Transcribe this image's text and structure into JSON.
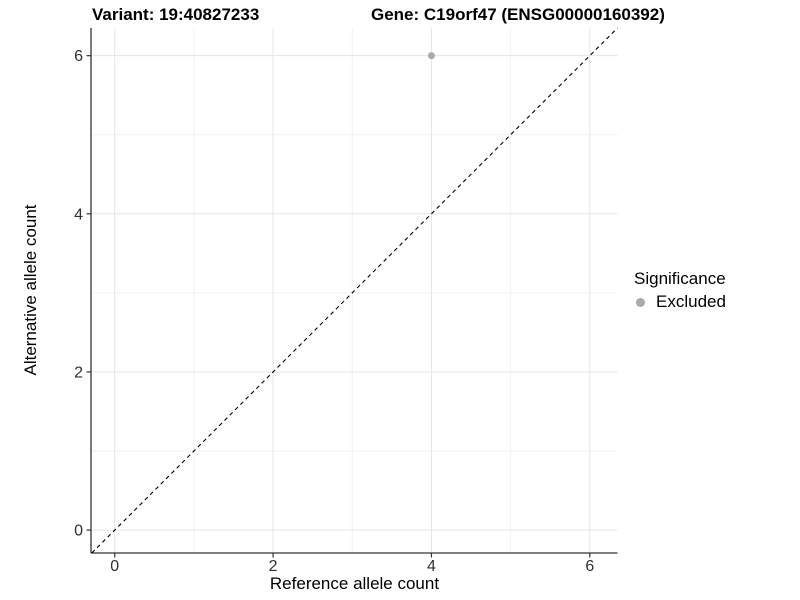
{
  "chart_data": {
    "type": "scatter",
    "title_left": "Variant: 19:40827233",
    "title_right": "Gene: C19orf47 (ENSG00000160392)",
    "xlabel": "Reference allele count",
    "ylabel": "Alternative allele count",
    "xlim": [
      -0.3,
      6.35
    ],
    "ylim": [
      -0.29,
      6.35
    ],
    "x_ticks": [
      0,
      2,
      4,
      6
    ],
    "y_ticks": [
      0,
      2,
      4,
      6
    ],
    "x_minor_ticks": [
      1,
      3,
      5
    ],
    "y_minor_ticks": [
      1,
      3,
      5
    ],
    "grid": "major and minor gridlines on white panel",
    "points": [
      {
        "x": 4,
        "y": 6,
        "significance": "Excluded"
      }
    ],
    "reference_line": {
      "kind": "identity y=x",
      "style": "dashed",
      "span": "corner-to-corner"
    },
    "legend": {
      "title": "Significance",
      "position": "right",
      "entries": [
        {
          "label": "Excluded",
          "color": "#aaaaaa"
        }
      ]
    }
  },
  "colors": {
    "background": "#ffffff",
    "point": "#aaaaaa",
    "axis_line": "#333333",
    "grid_major": "#e5e5e5",
    "grid_minor": "#f2f2f2",
    "tick_label": "#303030",
    "reference_line": "#000000"
  }
}
